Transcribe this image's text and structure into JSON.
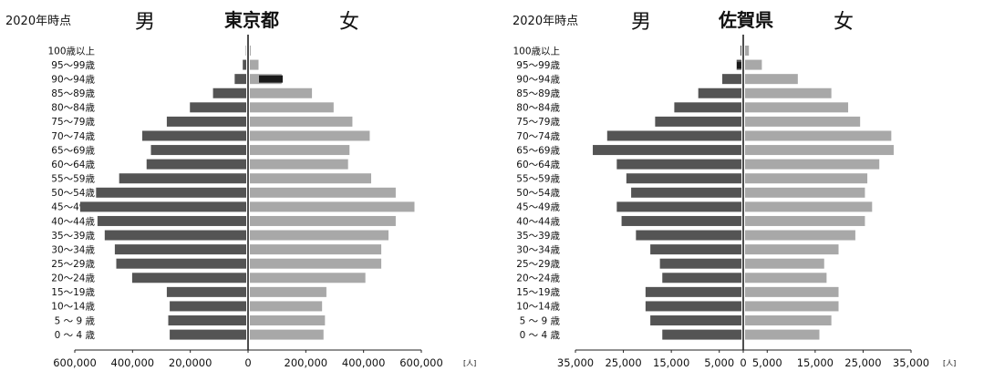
{
  "chart_data": [
    {
      "type": "bar",
      "orientation": "horizontal-population-pyramid",
      "year_label": "2020年時点",
      "title": "東京都",
      "left_label": "男",
      "right_label": "女",
      "categories": [
        "100歳以上",
        "95～99歳",
        "90～94歳",
        "85～89歳",
        "80～84歳",
        "75～79歳",
        "70～74歳",
        "65～69歳",
        "60～64歳",
        "55～59歳",
        "50～54歳",
        "45～49歳",
        "40～44歳",
        "35～39歳",
        "30～34歳",
        "25～29歳",
        "20～24歳",
        "15～19歳",
        "10～14歳",
        "5 ～ 9 歳",
        "0 ～ 4 歳"
      ],
      "series": [
        {
          "name": "男",
          "values": [
            1000,
            12000,
            40000,
            115000,
            195000,
            275000,
            360000,
            330000,
            345000,
            440000,
            520000,
            575000,
            515000,
            490000,
            455000,
            450000,
            395000,
            275000,
            265000,
            270000,
            265000
          ]
        },
        {
          "name": "女",
          "values": [
            3000,
            30000,
            110000,
            215000,
            290000,
            355000,
            415000,
            345000,
            340000,
            420000,
            505000,
            570000,
            505000,
            480000,
            455000,
            455000,
            400000,
            265000,
            250000,
            260000,
            255000
          ]
        }
      ],
      "x_ticks": [
        "600,000",
        "400,000",
        "20,0000",
        "0",
        "200,000",
        "400,000",
        "600,000"
      ],
      "x_tick_values": [
        -600000,
        -400000,
        -200000,
        0,
        200000,
        400000,
        600000
      ],
      "xlim": [
        -600000,
        600000
      ],
      "unit": "[人]",
      "grid": false
    },
    {
      "type": "bar",
      "orientation": "horizontal-population-pyramid",
      "year_label": "2020年時点",
      "title": "佐賀県",
      "left_label": "男",
      "right_label": "女",
      "categories": [
        "100歳以上",
        "95～99歳",
        "90～94歳",
        "85～89歳",
        "80～84歳",
        "75～79歳",
        "70～74歳",
        "65～69歳",
        "60～64歳",
        "55～59歳",
        "50～54歳",
        "45～49歳",
        "40～44歳",
        "35～39歳",
        "30～34歳",
        "25～29歳",
        "20～24歳",
        "15～19歳",
        "10～14歳",
        "5 ～ 9 歳",
        "0 ～ 4 歳"
      ],
      "series": [
        {
          "name": "男",
          "values": [
            200,
            1000,
            4000,
            9000,
            14000,
            18000,
            28000,
            31000,
            26000,
            24000,
            23000,
            26000,
            25000,
            22000,
            19000,
            17000,
            16500,
            20000,
            20000,
            19000,
            16500
          ]
        },
        {
          "name": "女",
          "values": [
            800,
            3500,
            11000,
            18000,
            21500,
            24000,
            30500,
            31000,
            28000,
            25500,
            25000,
            26500,
            25000,
            23000,
            19500,
            16500,
            17000,
            19500,
            19500,
            18000,
            15500
          ]
        }
      ],
      "x_ticks": [
        "35,000",
        "25,000",
        "15,000",
        "5,000",
        "0",
        "5,000",
        "15,000",
        "25,000",
        "35,000"
      ],
      "x_tick_values": [
        -35000,
        -25000,
        -15000,
        -5000,
        0,
        5000,
        15000,
        25000,
        35000
      ],
      "xlim": [
        -35000,
        35000
      ],
      "unit": "[人]",
      "grid": false
    }
  ],
  "colors": {
    "male_bar": "#545454",
    "female_bar": "#a8a8a8",
    "highlight_bar": "#1a1a1a",
    "axis": "#222222"
  }
}
